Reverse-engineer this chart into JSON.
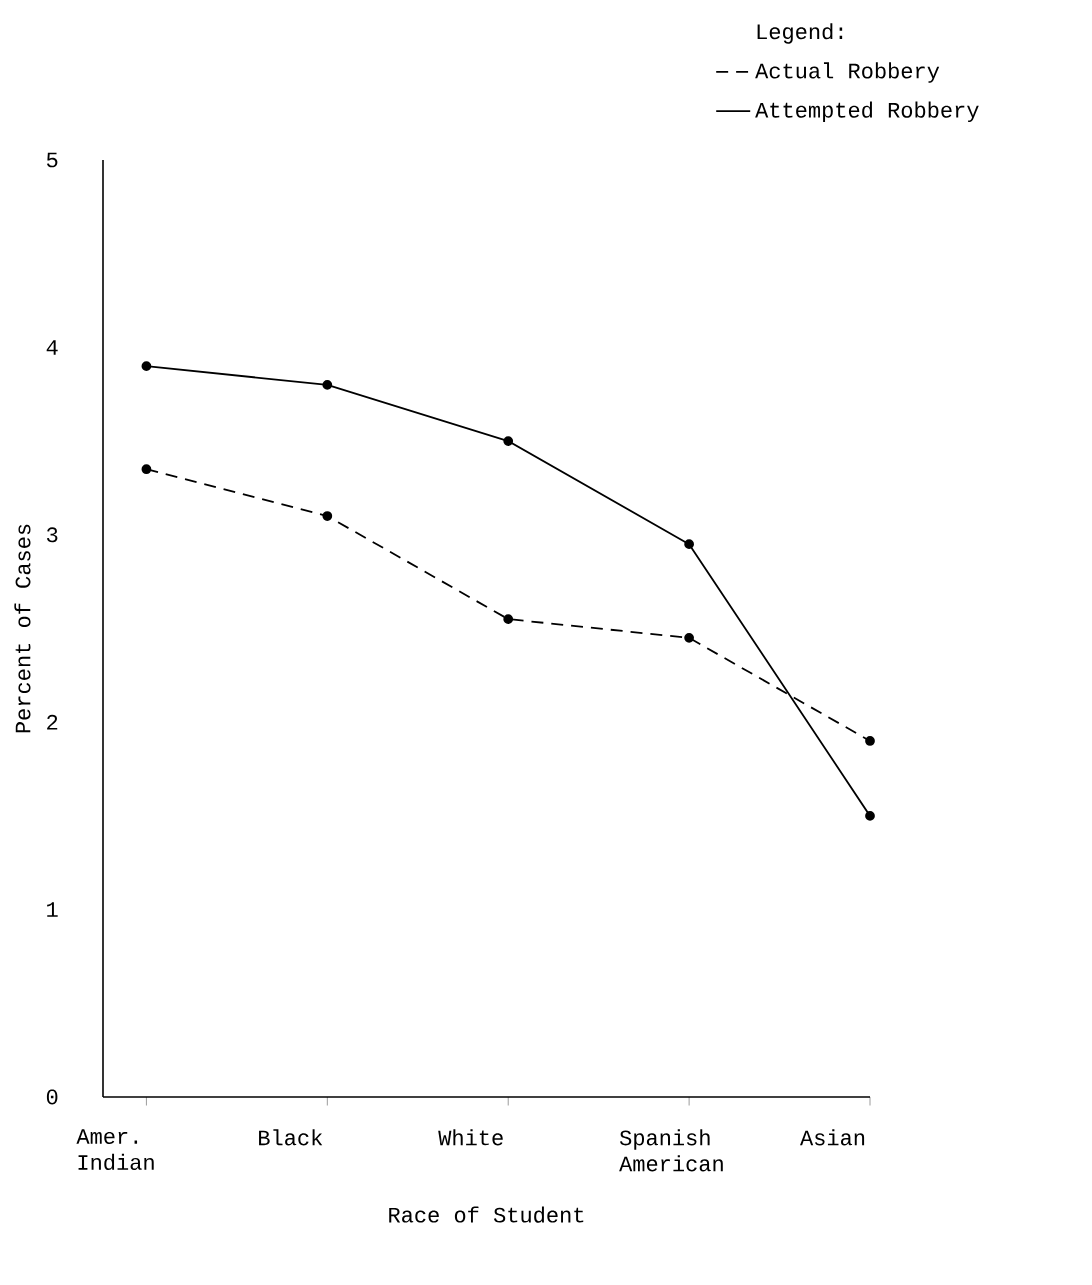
{
  "chart_data": {
    "type": "line",
    "xlabel": "Race of Student",
    "ylabel": "Percent of Cases",
    "legend_title": "Legend:",
    "categories": [
      "Amer. Indian",
      "Black",
      "White",
      "Spanish American",
      "Asian"
    ],
    "series": [
      {
        "name": "Actual Robbery",
        "color": "#000000",
        "line_style": "dashed",
        "values": [
          3.35,
          3.1,
          2.55,
          2.45,
          1.9
        ]
      },
      {
        "name": "Attempted Robbery",
        "color": "#000000",
        "line_style": "solid",
        "values": [
          3.9,
          3.8,
          3.5,
          2.95,
          1.5
        ]
      }
    ],
    "ylim": [
      0,
      5
    ],
    "yticks": [
      0,
      1,
      2,
      3,
      4,
      5
    ],
    "marker": "circle",
    "grid": false,
    "legend": "top right"
  }
}
